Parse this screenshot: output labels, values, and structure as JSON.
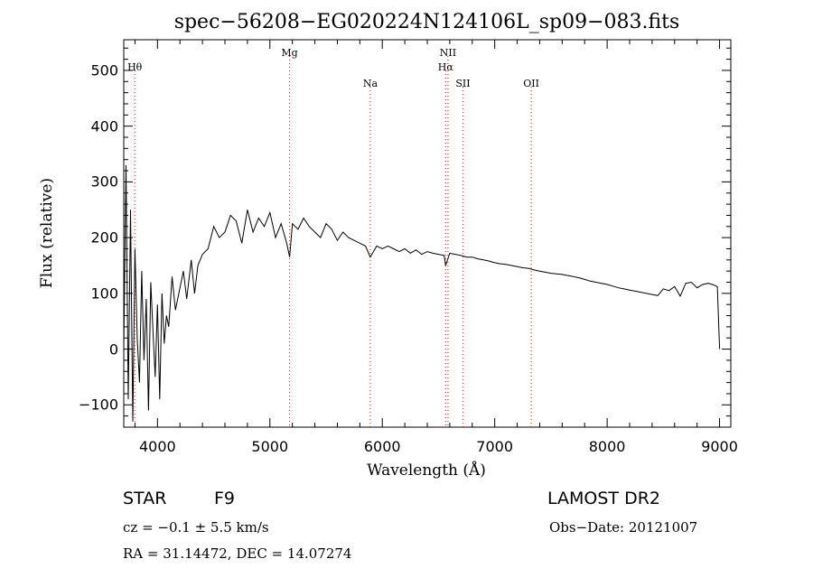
{
  "chart_data": {
    "type": "line",
    "title": "spec−56208−EG020224N124106L_sp09−083.fits",
    "xlabel": "Wavelength (Å)",
    "ylabel": "Flux (relative)",
    "xlim": [
      3700,
      9100
    ],
    "ylim": [
      -140,
      555
    ],
    "xticks": [
      4000,
      5000,
      6000,
      7000,
      8000,
      9000
    ],
    "yticks": [
      -100,
      0,
      100,
      200,
      300,
      400,
      500
    ],
    "grid": false,
    "line_color": "#000000",
    "marker_color": "#ff0000",
    "lines": [
      {
        "label": "Hθ",
        "wavelength": 3798,
        "row": 1
      },
      {
        "label": "Mg",
        "wavelength": 5175,
        "row": 0
      },
      {
        "label": "Na",
        "wavelength": 5893,
        "row": 2
      },
      {
        "label": "NII",
        "wavelength": 6584,
        "row": 0
      },
      {
        "label": "Hα",
        "wavelength": 6563,
        "row": 1
      },
      {
        "label": "SII",
        "wavelength": 6717,
        "row": 2
      },
      {
        "label": "OII",
        "wavelength": 7325,
        "row": 2
      }
    ],
    "x": [
      3700,
      3720,
      3740,
      3760,
      3780,
      3800,
      3820,
      3840,
      3860,
      3880,
      3900,
      3920,
      3940,
      3960,
      3980,
      4000,
      4020,
      4040,
      4060,
      4080,
      4100,
      4130,
      4160,
      4200,
      4230,
      4260,
      4300,
      4330,
      4360,
      4400,
      4450,
      4500,
      4550,
      4600,
      4650,
      4700,
      4750,
      4800,
      4850,
      4900,
      4950,
      5000,
      5050,
      5100,
      5150,
      5175,
      5200,
      5250,
      5300,
      5350,
      5400,
      5450,
      5500,
      5550,
      5600,
      5650,
      5700,
      5750,
      5800,
      5850,
      5893,
      5950,
      6000,
      6050,
      6100,
      6150,
      6200,
      6250,
      6300,
      6350,
      6400,
      6450,
      6500,
      6550,
      6563,
      6600,
      6650,
      6700,
      6750,
      6800,
      6850,
      6900,
      6950,
      7000,
      7050,
      7100,
      7150,
      7200,
      7250,
      7300,
      7350,
      7400,
      7450,
      7500,
      7550,
      7600,
      7650,
      7700,
      7750,
      7800,
      7850,
      7900,
      7950,
      8000,
      8050,
      8100,
      8150,
      8200,
      8250,
      8300,
      8350,
      8400,
      8450,
      8500,
      8550,
      8600,
      8650,
      8700,
      8750,
      8800,
      8850,
      8900,
      8950,
      8980,
      9000
    ],
    "y": [
      0,
      330,
      -90,
      250,
      -130,
      180,
      20,
      -60,
      140,
      -20,
      90,
      -110,
      120,
      30,
      -50,
      80,
      -90,
      100,
      10,
      60,
      40,
      130,
      70,
      110,
      140,
      90,
      160,
      100,
      150,
      170,
      180,
      220,
      200,
      210,
      240,
      230,
      190,
      250,
      210,
      235,
      220,
      245,
      200,
      225,
      190,
      165,
      225,
      215,
      235,
      220,
      210,
      200,
      225,
      215,
      195,
      210,
      200,
      195,
      190,
      185,
      165,
      185,
      180,
      185,
      180,
      175,
      180,
      172,
      178,
      170,
      175,
      172,
      170,
      168,
      150,
      172,
      170,
      168,
      165,
      165,
      162,
      160,
      158,
      155,
      153,
      152,
      150,
      148,
      146,
      145,
      142,
      140,
      138,
      136,
      135,
      134,
      132,
      130,
      128,
      125,
      122,
      120,
      118,
      116,
      113,
      110,
      108,
      106,
      104,
      102,
      100,
      98,
      96,
      108,
      105,
      112,
      95,
      118,
      120,
      110,
      116,
      118,
      115,
      112,
      0
    ]
  },
  "footer": {
    "object_class": "STAR",
    "subclass": "F9",
    "survey": "LAMOST DR2",
    "cz": "cz = −0.1 ± 5.5 km/s",
    "obs_date": "Obs−Date: 20121007",
    "coords": "RA =  31.14472, DEC =  14.07274"
  }
}
